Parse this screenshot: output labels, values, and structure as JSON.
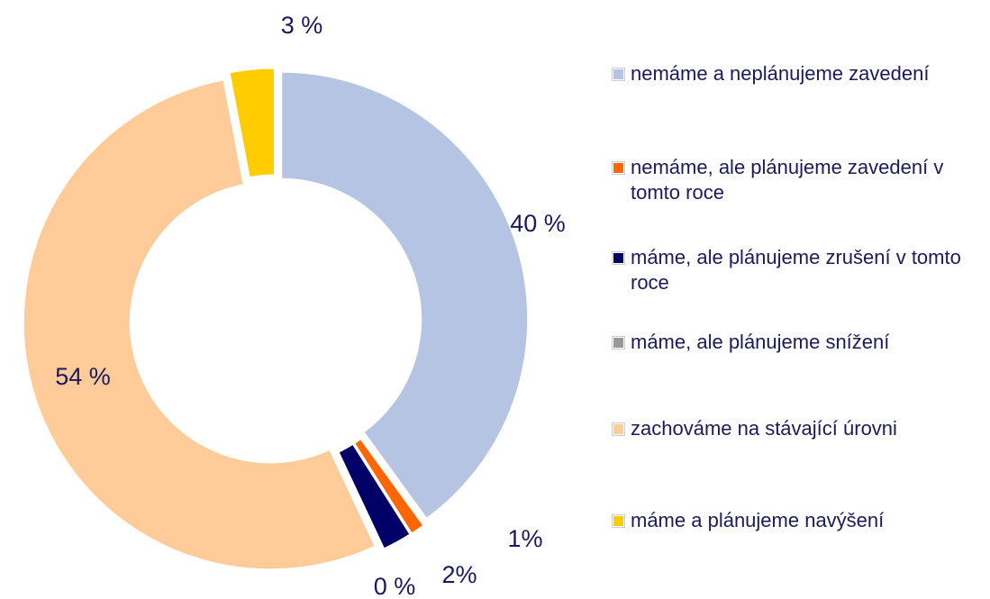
{
  "chart_data": {
    "type": "donut",
    "categories": [
      "nemáme a neplánujeme zavedení",
      "nemáme, ale plánujeme zavedení v tomto roce",
      "máme, ale plánujeme zrušení v tomto roce",
      "máme, ale plánujeme snížení",
      "zachováme na stávající úrovni",
      "máme a plánujeme navýšení"
    ],
    "values": [
      40,
      1,
      2,
      0,
      54,
      3
    ],
    "value_labels": [
      "40 %",
      "1%",
      "2%",
      "0 %",
      "54 %",
      "3 %"
    ],
    "colors": [
      "#b4c4e2",
      "#ff6600",
      "#000066",
      "#999999",
      "#ffcc99",
      "#ffcc00"
    ],
    "legend": "right"
  }
}
